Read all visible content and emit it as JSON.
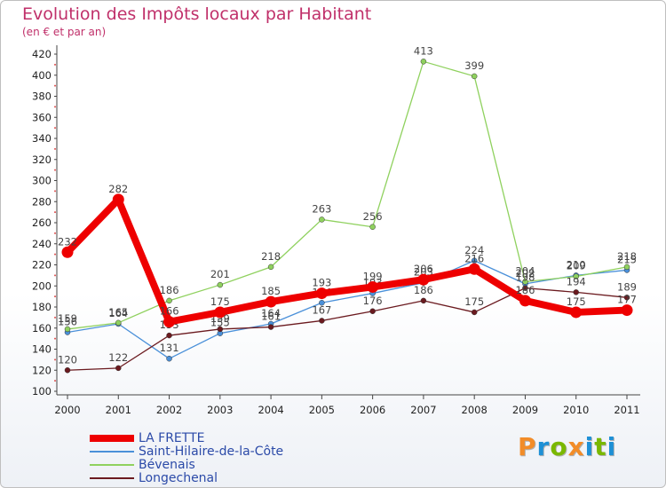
{
  "header": {
    "title": "Evolution des Impôts locaux par Habitant",
    "subtitle": "(en € et par an)"
  },
  "logo": {
    "text": "Proxiti",
    "colors": [
      "#f28c28",
      "#1e90d6",
      "#7ab800",
      "#f28c28",
      "#1e90d6",
      "#7ab800",
      "#1e90d6"
    ]
  },
  "chart_data": {
    "type": "line",
    "title": "Evolution des Impôts locaux par Habitant",
    "subtitle": "(en € et par an)",
    "x": [
      "2000",
      "2001",
      "2002",
      "2003",
      "2004",
      "2005",
      "2006",
      "2007",
      "2008",
      "2009",
      "2010",
      "2011"
    ],
    "ylim": [
      100,
      420
    ],
    "yticks": [
      100,
      120,
      140,
      160,
      180,
      200,
      220,
      240,
      260,
      280,
      300,
      320,
      340,
      360,
      380,
      400,
      420
    ],
    "grid": false,
    "legend_position": "bottom-left",
    "series": [
      {
        "name": "Saint-Hilaire-de-la-Côte",
        "color": "#4a90d9",
        "values": [
          156,
          164,
          131,
          155,
          164,
          184,
          193,
          203,
          224,
          202,
          210,
          215
        ]
      },
      {
        "name": "Bévenais",
        "color": "#8fd15e",
        "values": [
          159,
          165,
          186,
          201,
          218,
          263,
          256,
          413,
          399,
          204,
          209,
          218
        ]
      },
      {
        "name": "Longechenal",
        "color": "#6b1a1f",
        "values": [
          120,
          122,
          153,
          159,
          161,
          167,
          176,
          186,
          175,
          198,
          194,
          189
        ]
      },
      {
        "name": "LA FRETTE",
        "color": "#ee0000",
        "values": [
          232,
          282,
          166,
          175,
          185,
          193,
          199,
          206,
          216,
          186,
          175,
          177
        ]
      }
    ]
  }
}
